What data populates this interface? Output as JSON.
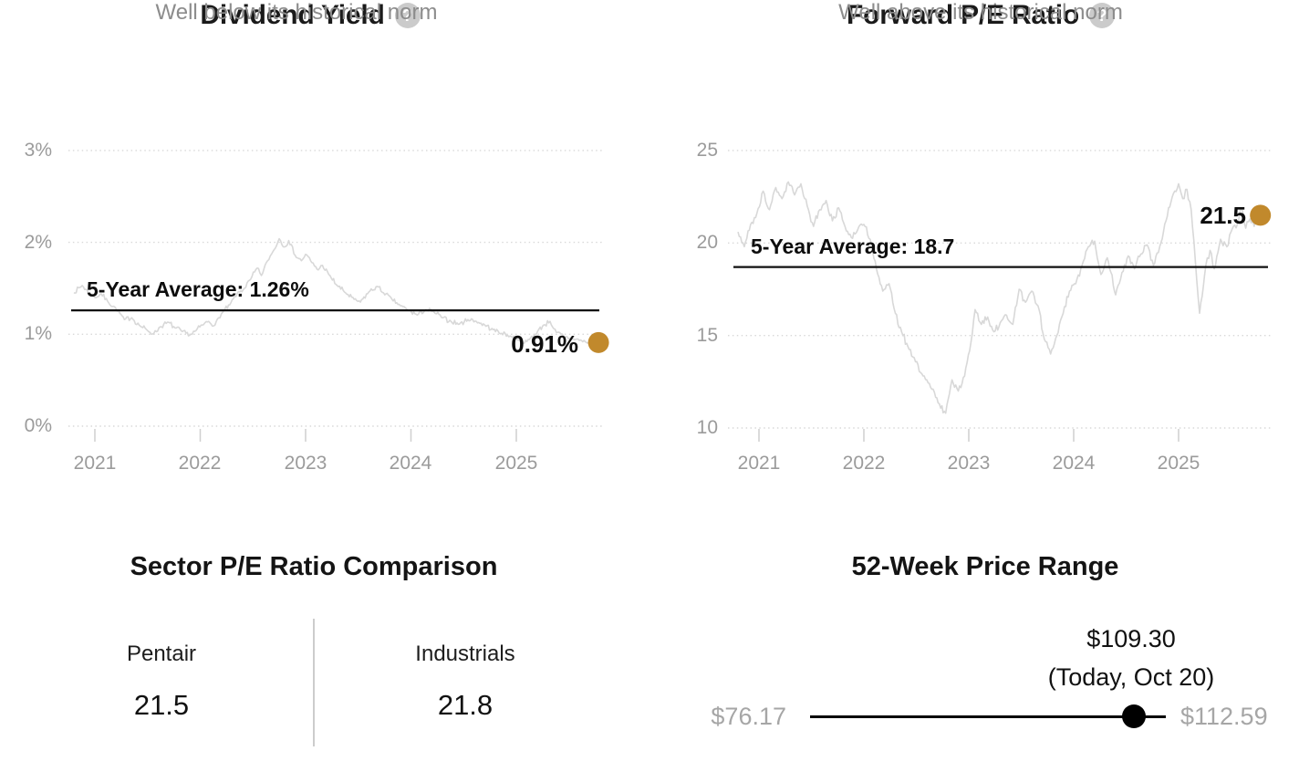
{
  "colors": {
    "accent_dot": "#C1892C",
    "series_line": "#d8d8d8",
    "gridline": "#d9d9d9",
    "avg_line": "#111111",
    "tick_label": "#9b9b9b",
    "divider": "#cccccc"
  },
  "chart_data": [
    {
      "type": "line",
      "id": "dividend-yield",
      "title": "Dividend Yield",
      "help_icon": "?",
      "subtitle": "Well below its historical norm",
      "legend": "none",
      "grid": "dotted-horizontal",
      "x_range": [
        2020.8,
        2025.78
      ],
      "y_range": [
        0,
        3
      ],
      "average": {
        "label": "5-Year Average: 1.26%",
        "value": 1.26
      },
      "current": {
        "label": "0.91%",
        "value": 0.91
      },
      "y_ticks": [
        {
          "v": 3,
          "label": "3%"
        },
        {
          "v": 2,
          "label": "2%"
        },
        {
          "v": 1,
          "label": "1%"
        },
        {
          "v": 0,
          "label": "0%"
        }
      ],
      "x_ticks": [
        {
          "v": 2021,
          "label": "2021"
        },
        {
          "v": 2022,
          "label": "2022"
        },
        {
          "v": 2023,
          "label": "2023"
        },
        {
          "v": 2024,
          "label": "2024"
        },
        {
          "v": 2025,
          "label": "2025"
        }
      ],
      "points": [
        [
          2020.8,
          1.45
        ],
        [
          2020.88,
          1.53
        ],
        [
          2020.95,
          1.44
        ],
        [
          2021.0,
          1.4
        ],
        [
          2021.06,
          1.44
        ],
        [
          2021.12,
          1.36
        ],
        [
          2021.2,
          1.28
        ],
        [
          2021.28,
          1.16
        ],
        [
          2021.35,
          1.18
        ],
        [
          2021.42,
          1.1
        ],
        [
          2021.5,
          1.04
        ],
        [
          2021.56,
          1.01
        ],
        [
          2021.62,
          1.08
        ],
        [
          2021.7,
          1.13
        ],
        [
          2021.76,
          1.07
        ],
        [
          2021.83,
          1.03
        ],
        [
          2021.9,
          0.99
        ],
        [
          2021.96,
          1.04
        ],
        [
          2022.02,
          1.1
        ],
        [
          2022.08,
          1.14
        ],
        [
          2022.14,
          1.1
        ],
        [
          2022.2,
          1.22
        ],
        [
          2022.28,
          1.32
        ],
        [
          2022.35,
          1.44
        ],
        [
          2022.42,
          1.5
        ],
        [
          2022.48,
          1.6
        ],
        [
          2022.54,
          1.72
        ],
        [
          2022.58,
          1.64
        ],
        [
          2022.64,
          1.8
        ],
        [
          2022.7,
          1.92
        ],
        [
          2022.75,
          2.04
        ],
        [
          2022.8,
          1.95
        ],
        [
          2022.84,
          2.02
        ],
        [
          2022.9,
          1.86
        ],
        [
          2022.96,
          1.8
        ],
        [
          2023.0,
          1.87
        ],
        [
          2023.06,
          1.78
        ],
        [
          2023.12,
          1.7
        ],
        [
          2023.16,
          1.75
        ],
        [
          2023.22,
          1.65
        ],
        [
          2023.3,
          1.53
        ],
        [
          2023.38,
          1.45
        ],
        [
          2023.46,
          1.38
        ],
        [
          2023.52,
          1.35
        ],
        [
          2023.6,
          1.46
        ],
        [
          2023.68,
          1.52
        ],
        [
          2023.74,
          1.45
        ],
        [
          2023.82,
          1.38
        ],
        [
          2023.9,
          1.31
        ],
        [
          2023.98,
          1.26
        ],
        [
          2024.06,
          1.21
        ],
        [
          2024.14,
          1.27
        ],
        [
          2024.22,
          1.24
        ],
        [
          2024.3,
          1.18
        ],
        [
          2024.38,
          1.14
        ],
        [
          2024.46,
          1.11
        ],
        [
          2024.54,
          1.16
        ],
        [
          2024.62,
          1.14
        ],
        [
          2024.7,
          1.1
        ],
        [
          2024.78,
          1.05
        ],
        [
          2024.86,
          1.01
        ],
        [
          2024.94,
          0.98
        ],
        [
          2025.02,
          0.94
        ],
        [
          2025.1,
          0.92
        ],
        [
          2025.18,
          1.0
        ],
        [
          2025.26,
          1.1
        ],
        [
          2025.32,
          1.14
        ],
        [
          2025.38,
          1.02
        ],
        [
          2025.46,
          0.97
        ],
        [
          2025.54,
          0.95
        ],
        [
          2025.62,
          0.93
        ],
        [
          2025.7,
          0.9
        ],
        [
          2025.78,
          0.91
        ]
      ]
    },
    {
      "type": "line",
      "id": "forward-pe",
      "title": "Forward P/E Ratio",
      "help_icon": "?",
      "subtitle": "Well above its historical norm",
      "legend": "none",
      "grid": "dotted-horizontal",
      "x_range": [
        2020.8,
        2025.78
      ],
      "y_range": [
        10,
        25
      ],
      "average": {
        "label": "5-Year Average: 18.7",
        "value": 18.7
      },
      "current": {
        "label": "21.5",
        "value": 21.5
      },
      "y_ticks": [
        {
          "v": 25,
          "label": "25"
        },
        {
          "v": 20,
          "label": "20"
        },
        {
          "v": 15,
          "label": "15"
        },
        {
          "v": 10,
          "label": "10"
        }
      ],
      "x_ticks": [
        {
          "v": 2021,
          "label": "2021"
        },
        {
          "v": 2022,
          "label": "2022"
        },
        {
          "v": 2023,
          "label": "2023"
        },
        {
          "v": 2024,
          "label": "2024"
        },
        {
          "v": 2025,
          "label": "2025"
        }
      ],
      "points": [
        [
          2020.8,
          20.6
        ],
        [
          2020.86,
          19.8
        ],
        [
          2020.92,
          21.0
        ],
        [
          2020.98,
          21.6
        ],
        [
          2021.04,
          22.8
        ],
        [
          2021.1,
          21.8
        ],
        [
          2021.16,
          23.0
        ],
        [
          2021.22,
          22.4
        ],
        [
          2021.28,
          23.3
        ],
        [
          2021.34,
          22.6
        ],
        [
          2021.4,
          23.2
        ],
        [
          2021.46,
          22.0
        ],
        [
          2021.52,
          20.9
        ],
        [
          2021.58,
          21.8
        ],
        [
          2021.64,
          22.3
        ],
        [
          2021.7,
          21.2
        ],
        [
          2021.76,
          21.9
        ],
        [
          2021.82,
          20.9
        ],
        [
          2021.88,
          20.3
        ],
        [
          2021.94,
          20.7
        ],
        [
          2022.0,
          21.0
        ],
        [
          2022.06,
          20.2
        ],
        [
          2022.12,
          18.6
        ],
        [
          2022.18,
          17.4
        ],
        [
          2022.24,
          17.8
        ],
        [
          2022.3,
          16.2
        ],
        [
          2022.36,
          15.2
        ],
        [
          2022.42,
          14.4
        ],
        [
          2022.48,
          13.8
        ],
        [
          2022.54,
          13.0
        ],
        [
          2022.6,
          12.6
        ],
        [
          2022.66,
          12.1
        ],
        [
          2022.72,
          11.3
        ],
        [
          2022.78,
          10.8
        ],
        [
          2022.84,
          12.6
        ],
        [
          2022.9,
          12.0
        ],
        [
          2022.96,
          12.8
        ],
        [
          2023.02,
          14.6
        ],
        [
          2023.06,
          16.4
        ],
        [
          2023.12,
          15.6
        ],
        [
          2023.18,
          16.0
        ],
        [
          2023.24,
          15.2
        ],
        [
          2023.3,
          15.7
        ],
        [
          2023.36,
          16.1
        ],
        [
          2023.42,
          15.6
        ],
        [
          2023.48,
          17.5
        ],
        [
          2023.54,
          16.8
        ],
        [
          2023.6,
          17.4
        ],
        [
          2023.66,
          16.6
        ],
        [
          2023.72,
          14.8
        ],
        [
          2023.78,
          14.0
        ],
        [
          2023.84,
          15.0
        ],
        [
          2023.9,
          16.2
        ],
        [
          2023.96,
          17.4
        ],
        [
          2024.02,
          17.8
        ],
        [
          2024.08,
          18.8
        ],
        [
          2024.14,
          19.8
        ],
        [
          2024.2,
          20.1
        ],
        [
          2024.26,
          18.3
        ],
        [
          2024.32,
          19.2
        ],
        [
          2024.4,
          17.2
        ],
        [
          2024.46,
          18.4
        ],
        [
          2024.52,
          19.3
        ],
        [
          2024.58,
          18.6
        ],
        [
          2024.64,
          19.4
        ],
        [
          2024.7,
          19.9
        ],
        [
          2024.76,
          18.8
        ],
        [
          2024.82,
          19.8
        ],
        [
          2024.88,
          21.2
        ],
        [
          2024.94,
          22.5
        ],
        [
          2025.0,
          23.2
        ],
        [
          2025.04,
          22.4
        ],
        [
          2025.08,
          22.9
        ],
        [
          2025.12,
          21.8
        ],
        [
          2025.16,
          19.0
        ],
        [
          2025.2,
          16.2
        ],
        [
          2025.26,
          18.8
        ],
        [
          2025.3,
          19.6
        ],
        [
          2025.34,
          18.6
        ],
        [
          2025.4,
          20.2
        ],
        [
          2025.46,
          19.8
        ],
        [
          2025.5,
          20.6
        ],
        [
          2025.56,
          21.0
        ],
        [
          2025.6,
          21.9
        ],
        [
          2025.64,
          20.8
        ],
        [
          2025.68,
          21.3
        ],
        [
          2025.72,
          20.9
        ],
        [
          2025.78,
          21.5
        ]
      ]
    }
  ],
  "sector_comparison": {
    "title": "Sector P/E Ratio Comparison",
    "columns": [
      {
        "name": "Pentair",
        "value": "21.5"
      },
      {
        "name": "Industrials",
        "value": "21.8"
      }
    ]
  },
  "price_range": {
    "title": "52-Week Price Range",
    "low_label": "$76.17",
    "high_label": "$112.59",
    "current_label": "$109.30",
    "current_note": "(Today, Oct 20)",
    "low_value": 76.17,
    "high_value": 112.59,
    "current_value": 109.3
  }
}
